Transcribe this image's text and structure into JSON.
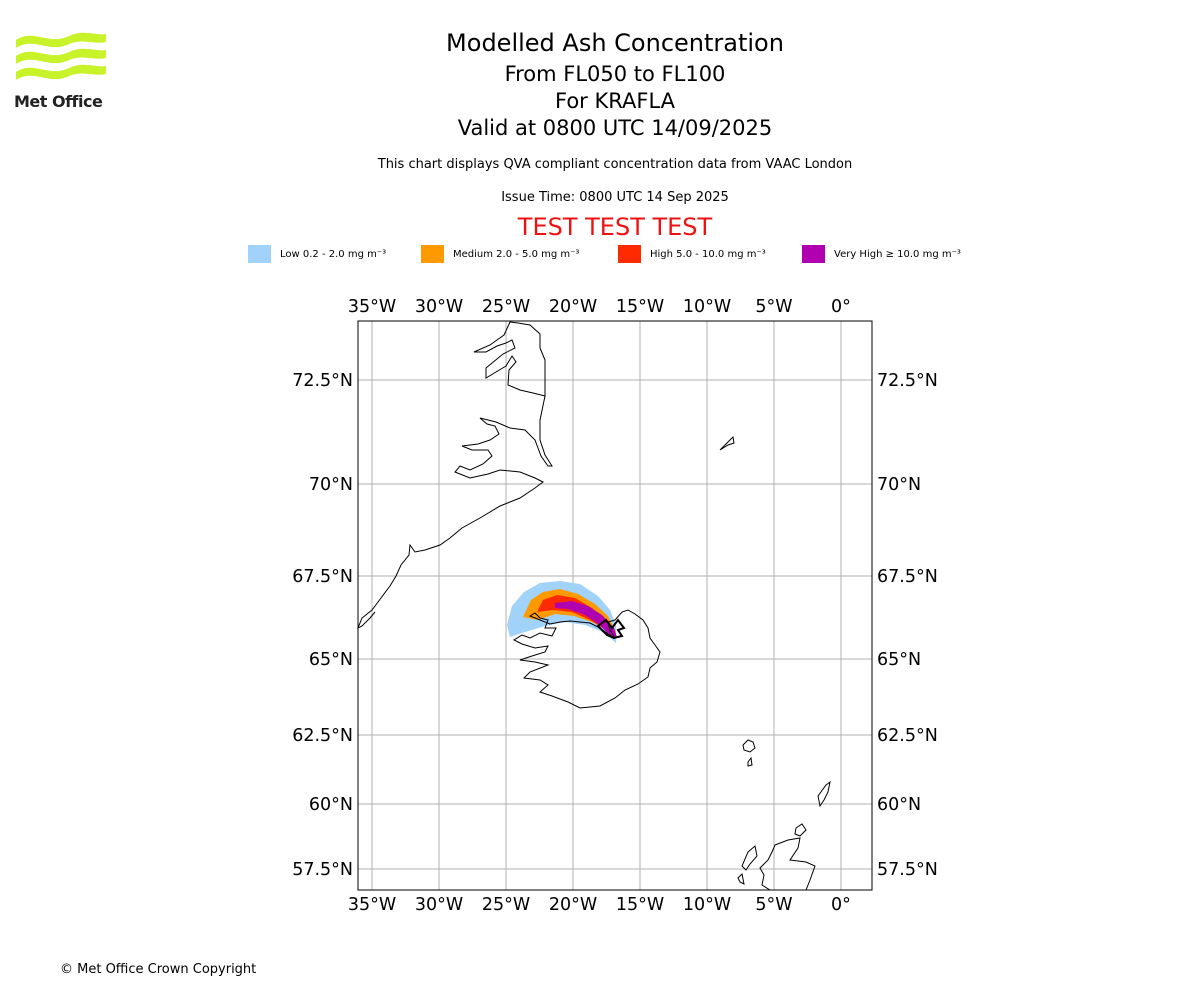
{
  "logo": {
    "text": "Met Office",
    "color": "#c8f22a"
  },
  "header": {
    "title": "Modelled Ash Concentration",
    "subtitle_levels": "From FL050 to FL100",
    "subtitle_volcano": "For KRAFLA",
    "subtitle_valid": "Valid at 0800 UTC 14/09/2025",
    "description": "This chart displays QVA compliant concentration data from VAAC London",
    "issue_time": "Issue Time: 0800 UTC 14 Sep 2025",
    "test_banner": "TEST TEST TEST",
    "test_color": "#ee1111"
  },
  "legend": [
    {
      "label": "Low 0.2 - 2.0 mg m⁻³",
      "color": "#a0d2fa"
    },
    {
      "label": "Medium 2.0 - 5.0 mg m⁻³",
      "color": "#ff9900"
    },
    {
      "label": "High 5.0 - 10.0 mg m⁻³",
      "color": "#ff2a00"
    },
    {
      "label": "Very High ≥ 10.0 mg m⁻³",
      "color": "#b000b0"
    }
  ],
  "map": {
    "lon_range": [
      -36,
      2.4
    ],
    "lat_range": [
      56.8,
      74
    ],
    "lon_ticks": [
      {
        "value": -35,
        "label": "35°W"
      },
      {
        "value": -30,
        "label": "30°W"
      },
      {
        "value": -25,
        "label": "25°W"
      },
      {
        "value": -20,
        "label": "20°W"
      },
      {
        "value": -15,
        "label": "15°W"
      },
      {
        "value": -10,
        "label": "10°W"
      },
      {
        "value": -5,
        "label": "5°W"
      },
      {
        "value": 0,
        "label": "0°"
      }
    ],
    "lat_ticks": [
      {
        "value": 72.5,
        "label": "72.5°N"
      },
      {
        "value": 70,
        "label": "70°N"
      },
      {
        "value": 67.5,
        "label": "67.5°N"
      },
      {
        "value": 65,
        "label": "65°N"
      },
      {
        "value": 62.5,
        "label": "62.5°N"
      },
      {
        "value": 60,
        "label": "60°N"
      },
      {
        "value": 57.5,
        "label": "57.5°N"
      }
    ],
    "gridline_color": "#b0b0b0",
    "gridlines": true
  },
  "footer": {
    "copyright": "© Met Office Crown Copyright"
  }
}
